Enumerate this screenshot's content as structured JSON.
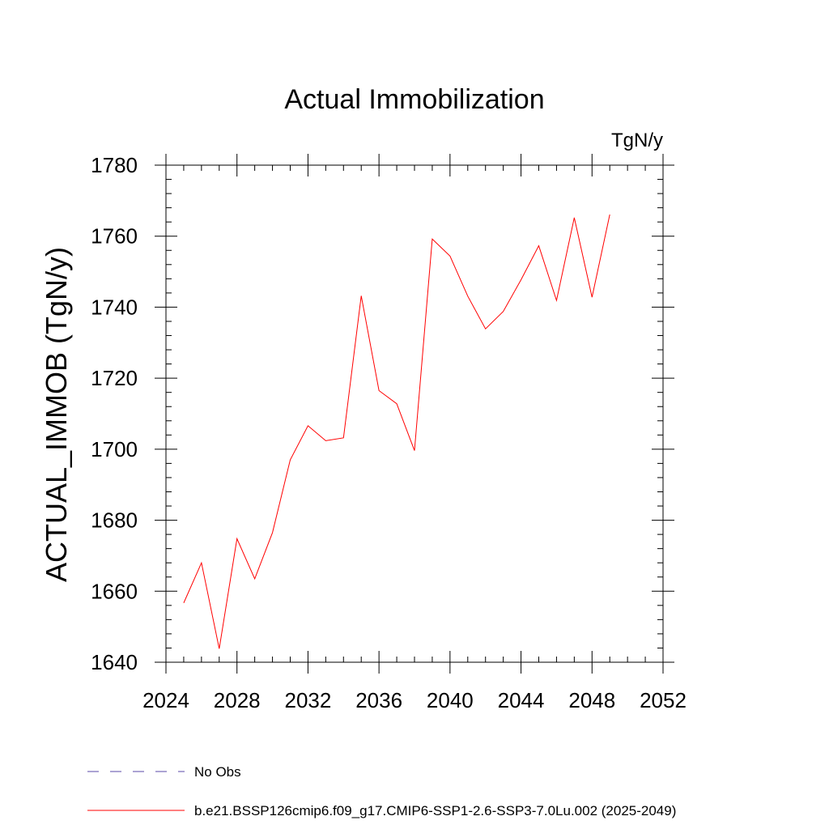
{
  "chart_data": {
    "type": "line",
    "title": "Actual Immobilization",
    "units_label": "TgN/y",
    "ylabel": "ACTUAL_IMMOB  (TgN/y)",
    "xlabel": "",
    "xlim": [
      2024,
      2052
    ],
    "ylim": [
      1640,
      1780
    ],
    "x_ticks": [
      2024,
      2028,
      2032,
      2036,
      2040,
      2044,
      2048,
      2052
    ],
    "x_tick_labels": [
      "2024",
      "2028",
      "2032",
      "2036",
      "2040",
      "2044",
      "2048",
      "2052"
    ],
    "y_ticks": [
      1640,
      1660,
      1680,
      1700,
      1720,
      1740,
      1760,
      1780
    ],
    "y_tick_labels": [
      "1640",
      "1660",
      "1680",
      "1700",
      "1720",
      "1740",
      "1760",
      "1780"
    ],
    "x_minor_step": 1,
    "y_minor_step": 4,
    "grid": false,
    "series": [
      {
        "name": "b.e21.BSSP126cmip6.f09_g17.CMIP6-SSP1-2.6-SSP3-7.0Lu.002 (2025-2049)",
        "color": "#ff0000",
        "style": "solid",
        "x": [
          2025,
          2026,
          2027,
          2028,
          2029,
          2030,
          2031,
          2032,
          2033,
          2034,
          2035,
          2036,
          2037,
          2038,
          2039,
          2040,
          2041,
          2042,
          2043,
          2044,
          2045,
          2046,
          2047,
          2048,
          2049
        ],
        "values": [
          1656.7,
          1668.0,
          1643.8,
          1674.8,
          1663.5,
          1676.5,
          1697.0,
          1706.6,
          1702.4,
          1703.2,
          1743.2,
          1716.5,
          1712.8,
          1699.6,
          1759.2,
          1754.4,
          1743.1,
          1733.9,
          1738.8,
          1747.7,
          1757.3,
          1741.9,
          1765.2,
          1742.8,
          1766.1
        ]
      }
    ],
    "legend": [
      {
        "label": "No Obs",
        "color": "#5a4aa8",
        "style": "dashed"
      },
      {
        "label": "b.e21.BSSP126cmip6.f09_g17.CMIP6-SSP1-2.6-SSP3-7.0Lu.002 (2025-2049)",
        "color": "#ff0000",
        "style": "solid"
      }
    ],
    "legend_position": "bottom-left"
  }
}
